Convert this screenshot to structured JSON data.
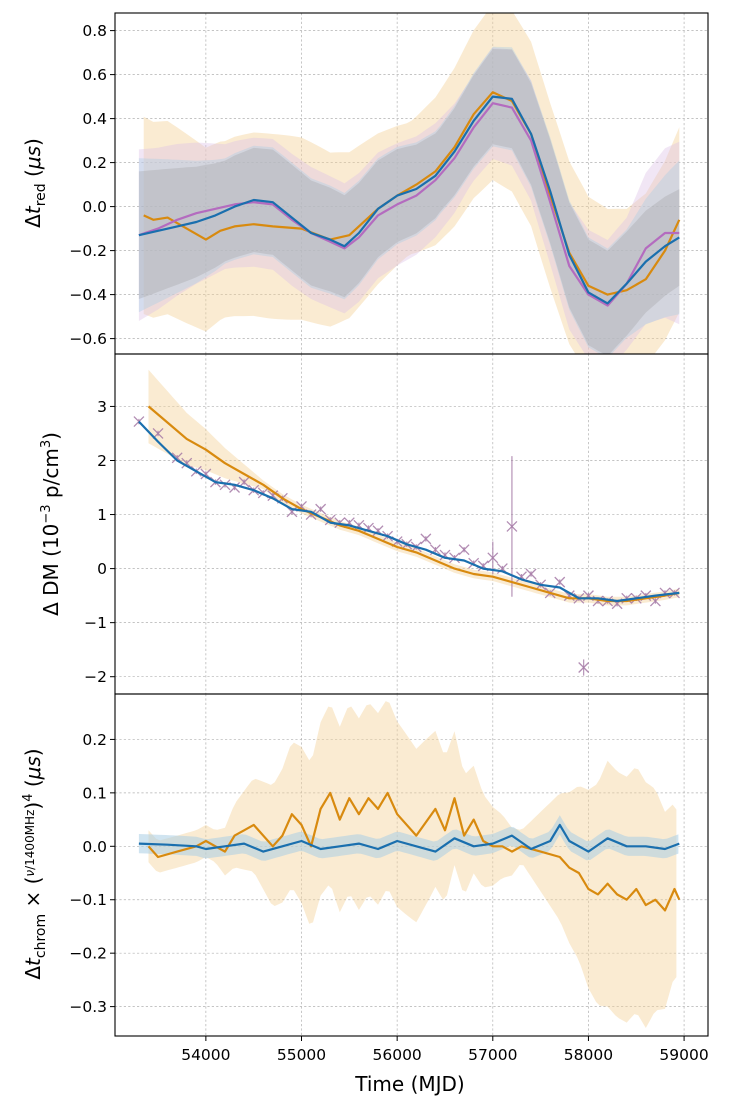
{
  "colors": {
    "orange": "#d88a0f",
    "blue": "#1a6fae",
    "purple": "#b46bbf",
    "dm_points": "#a479a6",
    "band_orange": "#f5d39c",
    "band_blue": "#a9cde4",
    "band_purple": "#dcc0e6",
    "band_grey": "#9a9a9a"
  },
  "xaxis": {
    "label": "Time (MJD)",
    "range": [
      53050,
      59250
    ],
    "ticks": [
      54000,
      55000,
      56000,
      57000,
      58000,
      59000
    ],
    "tick_labels": [
      "54000",
      "55000",
      "56000",
      "57000",
      "58000",
      "59000"
    ]
  },
  "chart_data": [
    {
      "type": "line",
      "panel": "red",
      "ylabel": "Δt_red (μs)",
      "ylim": [
        -0.67,
        0.88
      ],
      "yticks": [
        -0.6,
        -0.4,
        -0.2,
        0.0,
        0.2,
        0.4,
        0.6,
        0.8
      ],
      "ytick_labels": [
        "−0.6",
        "−0.4",
        "−0.2",
        "0.0",
        "0.2",
        "0.4",
        "0.6",
        "0.8"
      ],
      "grid": true,
      "series": [
        {
          "name": "orange",
          "color": "#d88a0f",
          "x": [
            53350,
            53450,
            53600,
            53800,
            54000,
            54150,
            54300,
            54500,
            54700,
            55000,
            55300,
            55500,
            55800,
            56000,
            56200,
            56400,
            56600,
            56800,
            57000,
            57200,
            57400,
            57600,
            57800,
            58000,
            58200,
            58400,
            58600,
            58800,
            58950
          ],
          "y": [
            -0.04,
            -0.06,
            -0.05,
            -0.1,
            -0.15,
            -0.11,
            -0.09,
            -0.08,
            -0.09,
            -0.1,
            -0.15,
            -0.13,
            -0.01,
            0.05,
            0.1,
            0.16,
            0.27,
            0.42,
            0.52,
            0.48,
            0.33,
            0.05,
            -0.21,
            -0.36,
            -0.4,
            -0.38,
            -0.33,
            -0.2,
            -0.06
          ]
        },
        {
          "name": "purple",
          "color": "#b46bbf",
          "x": [
            53300,
            53500,
            53700,
            53900,
            54100,
            54300,
            54500,
            54700,
            54900,
            55100,
            55300,
            55450,
            55600,
            55800,
            56000,
            56200,
            56400,
            56600,
            56800,
            57000,
            57200,
            57400,
            57600,
            57800,
            58000,
            58200,
            58400,
            58600,
            58800,
            58950
          ],
          "y": [
            -0.13,
            -0.1,
            -0.06,
            -0.03,
            -0.01,
            0.01,
            0.02,
            0.01,
            -0.06,
            -0.12,
            -0.16,
            -0.19,
            -0.14,
            -0.04,
            0.01,
            0.05,
            0.12,
            0.22,
            0.36,
            0.47,
            0.45,
            0.3,
            0.02,
            -0.27,
            -0.4,
            -0.45,
            -0.35,
            -0.19,
            -0.12,
            -0.12
          ]
        },
        {
          "name": "blue",
          "color": "#1a6fae",
          "x": [
            53300,
            53500,
            53700,
            53900,
            54100,
            54300,
            54500,
            54700,
            54900,
            55100,
            55300,
            55450,
            55600,
            55800,
            56000,
            56200,
            56400,
            56600,
            56800,
            57000,
            57200,
            57400,
            57600,
            57800,
            58000,
            58200,
            58400,
            58600,
            58800,
            58950
          ],
          "y": [
            -0.13,
            -0.11,
            -0.09,
            -0.07,
            -0.04,
            0.0,
            0.03,
            0.02,
            -0.05,
            -0.12,
            -0.15,
            -0.18,
            -0.12,
            -0.01,
            0.05,
            0.08,
            0.14,
            0.25,
            0.39,
            0.5,
            0.49,
            0.33,
            0.07,
            -0.22,
            -0.39,
            -0.44,
            -0.35,
            -0.25,
            -0.18,
            -0.14
          ]
        }
      ]
    },
    {
      "type": "line",
      "panel": "dm",
      "ylabel": "Δ DM (10⁻³ p/cm³)",
      "ylim": [
        -2.32,
        3.97
      ],
      "yticks": [
        -2,
        -1,
        0,
        1,
        2,
        3
      ],
      "ytick_labels": [
        "−2",
        "−1",
        "0",
        "1",
        "2",
        "3"
      ],
      "grid": true,
      "series": [
        {
          "name": "orange",
          "color": "#d88a0f",
          "x": [
            53400,
            53600,
            53800,
            54000,
            54200,
            54400,
            54600,
            54800,
            55000,
            55200,
            55400,
            55600,
            55800,
            56000,
            56200,
            56400,
            56600,
            56800,
            57000,
            57200,
            57400,
            57600,
            57800,
            58000,
            58200,
            58400,
            58600,
            58800,
            58950
          ],
          "y": [
            3.0,
            2.7,
            2.4,
            2.2,
            1.95,
            1.75,
            1.55,
            1.3,
            1.1,
            0.95,
            0.8,
            0.7,
            0.55,
            0.4,
            0.3,
            0.15,
            0.0,
            -0.1,
            -0.15,
            -0.25,
            -0.35,
            -0.45,
            -0.55,
            -0.55,
            -0.6,
            -0.6,
            -0.55,
            -0.5,
            -0.45
          ]
        },
        {
          "name": "blue",
          "color": "#1a6fae",
          "x": [
            53300,
            53500,
            53700,
            53900,
            54100,
            54300,
            54500,
            54700,
            54900,
            55100,
            55300,
            55500,
            55700,
            55900,
            56100,
            56300,
            56500,
            56700,
            56900,
            57100,
            57300,
            57500,
            57700,
            57900,
            58100,
            58300,
            58500,
            58700,
            58950
          ],
          "y": [
            2.72,
            2.35,
            2.0,
            1.8,
            1.6,
            1.55,
            1.45,
            1.3,
            1.1,
            1.05,
            0.85,
            0.8,
            0.7,
            0.6,
            0.45,
            0.35,
            0.2,
            0.15,
            0.0,
            -0.05,
            -0.2,
            -0.3,
            -0.35,
            -0.55,
            -0.55,
            -0.6,
            -0.55,
            -0.5,
            -0.45
          ]
        }
      ],
      "points": {
        "color": "#a479a6",
        "x": [
          53300,
          53500,
          53700,
          53800,
          53900,
          54000,
          54100,
          54200,
          54300,
          54400,
          54500,
          54600,
          54700,
          54800,
          54900,
          55000,
          55100,
          55200,
          55300,
          55400,
          55500,
          55600,
          55700,
          55800,
          55900,
          56000,
          56100,
          56200,
          56300,
          56400,
          56500,
          56600,
          56700,
          56800,
          56900,
          57000,
          57100,
          57200,
          57300,
          57400,
          57500,
          57600,
          57700,
          57800,
          57900,
          57950,
          58000,
          58100,
          58200,
          58300,
          58400,
          58500,
          58600,
          58700,
          58800,
          58900
        ],
        "y": [
          2.72,
          2.5,
          2.05,
          1.95,
          1.8,
          1.75,
          1.6,
          1.55,
          1.5,
          1.6,
          1.45,
          1.4,
          1.35,
          1.3,
          1.05,
          1.15,
          1.0,
          1.1,
          0.9,
          0.85,
          0.85,
          0.8,
          0.75,
          0.7,
          0.6,
          0.5,
          0.45,
          0.4,
          0.55,
          0.35,
          0.25,
          0.2,
          0.35,
          0.1,
          0.05,
          0.2,
          0.0,
          0.78,
          -0.15,
          -0.1,
          -0.3,
          -0.45,
          -0.25,
          -0.5,
          -0.55,
          -1.83,
          -0.5,
          -0.6,
          -0.6,
          -0.65,
          -0.55,
          -0.55,
          -0.5,
          -0.6,
          -0.45,
          -0.45
        ],
        "err": [
          0.05,
          0.05,
          0.05,
          0.05,
          0.05,
          0.05,
          0.05,
          0.05,
          0.05,
          0.05,
          0.05,
          0.05,
          0.05,
          0.05,
          0.05,
          0.05,
          0.05,
          0.05,
          0.05,
          0.05,
          0.05,
          0.05,
          0.05,
          0.05,
          0.05,
          0.05,
          0.05,
          0.05,
          0.05,
          0.05,
          0.05,
          0.05,
          0.05,
          0.05,
          0.05,
          0.3,
          0.05,
          1.3,
          0.05,
          0.05,
          0.05,
          0.05,
          0.05,
          0.05,
          0.05,
          0.15,
          0.05,
          0.05,
          0.05,
          0.05,
          0.05,
          0.05,
          0.05,
          0.05,
          0.05,
          0.05
        ]
      }
    },
    {
      "type": "line",
      "panel": "chrom",
      "ylabel": "Δt_chrom × (ν/1400MHz)⁴ (μs)",
      "ylim": [
        -0.355,
        0.285
      ],
      "yticks": [
        -0.3,
        -0.2,
        -0.1,
        0.0,
        0.1,
        0.2
      ],
      "ytick_labels": [
        "−0.3",
        "−0.2",
        "−0.1",
        "0.0",
        "0.1",
        "0.2"
      ],
      "grid": true,
      "series": [
        {
          "name": "orange",
          "color": "#d88a0f",
          "x": [
            53400,
            53500,
            53700,
            53900,
            54000,
            54100,
            54200,
            54300,
            54400,
            54500,
            54700,
            54800,
            54900,
            55000,
            55100,
            55200,
            55300,
            55400,
            55500,
            55600,
            55700,
            55800,
            55900,
            56000,
            56200,
            56400,
            56500,
            56600,
            56700,
            56800,
            56900,
            57000,
            57100,
            57200,
            57300,
            57500,
            57700,
            57800,
            57900,
            58000,
            58100,
            58200,
            58300,
            58400,
            58500,
            58600,
            58700,
            58800,
            58900,
            58950
          ],
          "y": [
            0.0,
            -0.02,
            -0.01,
            0.0,
            0.01,
            0.0,
            -0.01,
            0.02,
            0.03,
            0.04,
            0.0,
            0.02,
            0.06,
            0.04,
            0.0,
            0.07,
            0.1,
            0.05,
            0.09,
            0.06,
            0.09,
            0.07,
            0.1,
            0.06,
            0.02,
            0.07,
            0.03,
            0.09,
            0.02,
            0.05,
            0.01,
            0.0,
            0.0,
            -0.01,
            0.0,
            -0.01,
            -0.02,
            -0.04,
            -0.05,
            -0.08,
            -0.09,
            -0.07,
            -0.09,
            -0.1,
            -0.08,
            -0.11,
            -0.1,
            -0.12,
            -0.08,
            -0.1
          ]
        },
        {
          "name": "blue",
          "color": "#1a6fae",
          "x": [
            53300,
            53600,
            53900,
            54000,
            54200,
            54400,
            54600,
            54800,
            55000,
            55200,
            55400,
            55600,
            55800,
            56000,
            56200,
            56400,
            56600,
            56800,
            57000,
            57200,
            57400,
            57600,
            57700,
            57800,
            58000,
            58200,
            58400,
            58600,
            58800,
            58950
          ],
          "y": [
            0.005,
            0.003,
            0.0,
            -0.005,
            0.0,
            0.005,
            -0.01,
            0.0,
            0.01,
            -0.005,
            0.0,
            0.005,
            -0.005,
            0.01,
            0.0,
            -0.01,
            0.015,
            0.0,
            0.005,
            0.02,
            -0.005,
            0.01,
            0.04,
            0.01,
            -0.01,
            0.015,
            0.0,
            0.0,
            -0.005,
            0.005
          ]
        }
      ]
    }
  ]
}
